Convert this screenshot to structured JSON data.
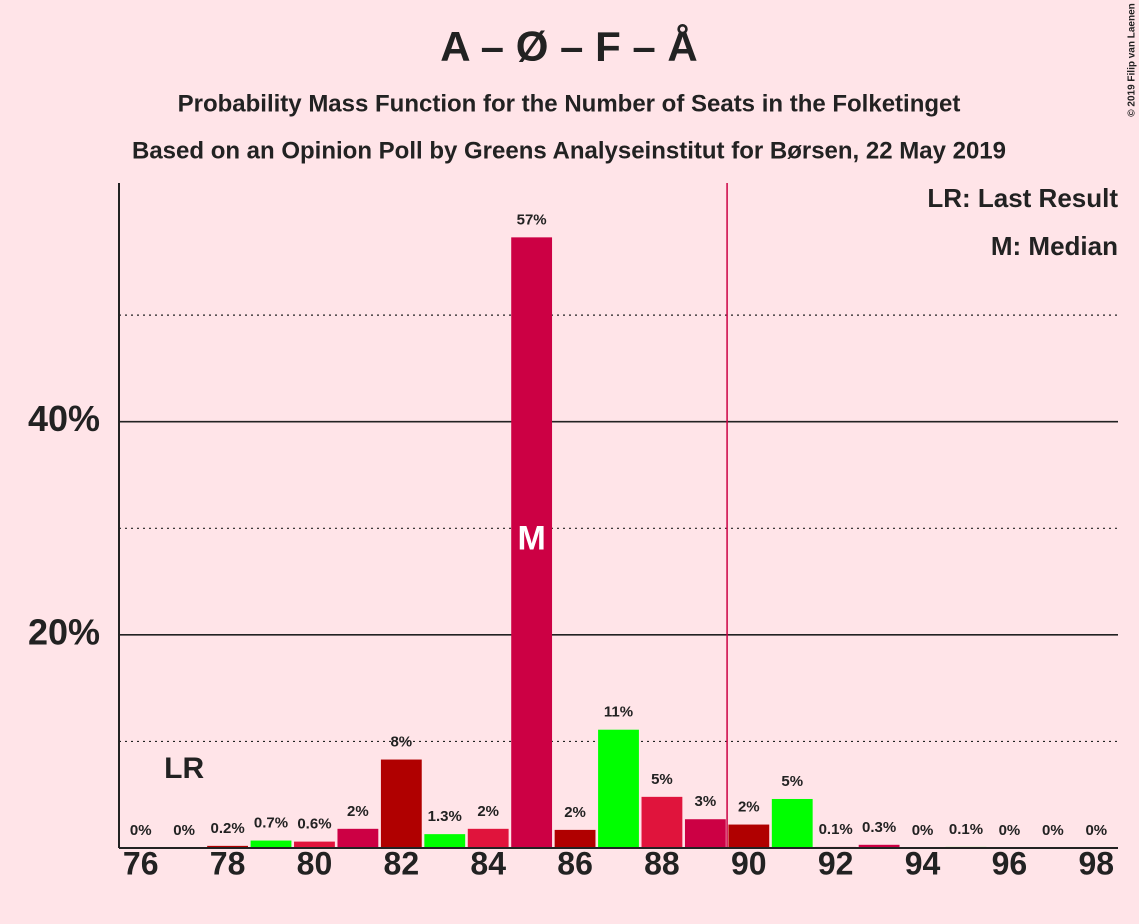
{
  "chart_data": {
    "type": "bar",
    "title": "A – Ø – F – Å",
    "subtitle": "Probability Mass Function for the Number of Seats in the Folketinget",
    "source_line": "Based on an Opinion Poll by Greens Analyseinstitut for Børsen, 22 May 2019",
    "copyright": "© 2019 Filip van Laenen",
    "x": [
      76,
      77,
      78,
      79,
      80,
      81,
      82,
      83,
      84,
      85,
      86,
      87,
      88,
      89,
      90,
      91,
      92,
      93,
      94,
      95,
      96,
      97,
      98
    ],
    "values": [
      0,
      0,
      0.2,
      0.7,
      0.6,
      1.8,
      8.3,
      1.3,
      1.8,
      57.3,
      1.7,
      11.1,
      4.8,
      2.7,
      2.2,
      4.6,
      0.1,
      0.3,
      0,
      0.1,
      0,
      0,
      0
    ],
    "value_labels": [
      "0%",
      "0%",
      "0.2%",
      "0.7%",
      "0.6%",
      "2%",
      "8%",
      "1.3%",
      "2%",
      "57%",
      "2%",
      "11%",
      "5%",
      "3%",
      "2%",
      "5%",
      "0.1%",
      "0.3%",
      "0%",
      "0.1%",
      "0%",
      "0%",
      "0%"
    ],
    "colors": [
      "#e0143c",
      "#cc0044",
      "#b00000",
      "#00ff00",
      "#e0143c",
      "#cc0044",
      "#b00000",
      "#00ff00",
      "#e0143c",
      "#cc0044",
      "#b00000",
      "#00ff00",
      "#e0143c",
      "#cc0044",
      "#b00000",
      "#00ff00",
      "#e0143c",
      "#cc0044",
      "#b00000",
      "#00ff00",
      "#e0143c",
      "#cc0044",
      "#b00000"
    ],
    "xlim": [
      75.5,
      98.5
    ],
    "xticks": [
      76,
      78,
      80,
      82,
      84,
      86,
      88,
      90,
      92,
      94,
      96,
      98
    ],
    "ylim": [
      0,
      62.4
    ],
    "yticks": [
      {
        "value": 20,
        "label": "20%"
      },
      {
        "value": 40,
        "label": "40%"
      }
    ],
    "minor_yticks": [
      10,
      30,
      50
    ],
    "grid": true,
    "majority_line": 89.5,
    "last_result": {
      "x": 77,
      "label": "LR"
    },
    "median": {
      "x": 85,
      "label": "M"
    },
    "legend": [
      "LR: Last Result",
      "M: Median"
    ]
  }
}
